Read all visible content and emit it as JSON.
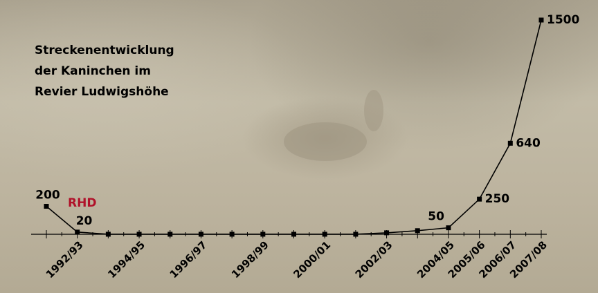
{
  "chart_data": {
    "type": "line",
    "title": [
      "Streckenentwicklung",
      "der Kaninchen im",
      "Revier Ludwigshöhe"
    ],
    "annotation": "RHD",
    "annotation_color": "#b0122a",
    "categories": [
      null,
      "1992/93",
      null,
      "1994/95",
      null,
      "1996/97",
      null,
      "1998/99",
      null,
      "2000/01",
      null,
      "2002/03",
      null,
      "2004/05",
      "2005/06",
      "2006/07",
      "2007/08"
    ],
    "series": [
      {
        "color": "#000000",
        "values": [
          200,
          20,
          5,
          5,
          5,
          5,
          5,
          5,
          5,
          5,
          5,
          15,
          30,
          50,
          250,
          640,
          1500
        ],
        "value_labels": [
          "200",
          "20",
          null,
          null,
          null,
          null,
          null,
          null,
          null,
          null,
          null,
          null,
          null,
          "50",
          "250",
          "640",
          "1500"
        ]
      }
    ]
  }
}
